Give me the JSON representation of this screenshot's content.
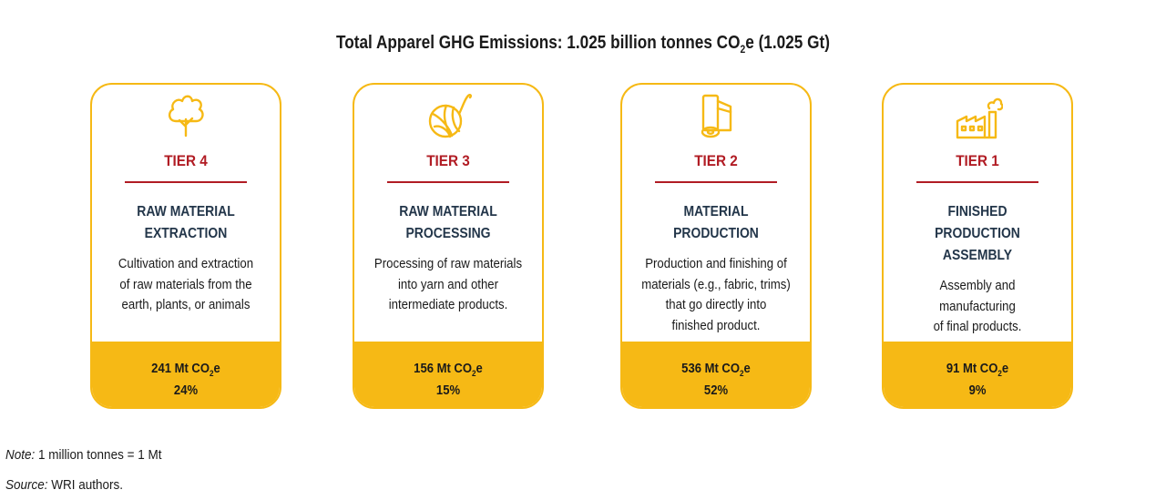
{
  "title": {
    "prefix": "Total Apparel GHG Emissions: 1.025 billion tonnes CO",
    "sub": "2",
    "suffix": "e (1.025 Gt)"
  },
  "cards": [
    {
      "icon": "cotton-plant-icon",
      "tier": "TIER 4",
      "heading": "RAW MATERIAL\nEXTRACTION",
      "description": "Cultivation and extraction\nof raw materials from the\nearth, plants, or animals",
      "emission_value": "241 Mt CO",
      "emission_sub": "2",
      "emission_suffix": "e",
      "percent": "24%"
    },
    {
      "icon": "yarn-ball-icon",
      "tier": "TIER 3",
      "heading": "RAW MATERIAL\nPROCESSING",
      "description": "Processing of raw materials\ninto yarn and other\nintermediate products.",
      "emission_value": "156 Mt CO",
      "emission_sub": "2",
      "emission_suffix": "e",
      "percent": "15%"
    },
    {
      "icon": "fabric-roll-icon",
      "tier": "TIER 2",
      "heading": "MATERIAL\nPRODUCTION",
      "description": "Production and finishing of\nmaterials (e.g., fabric, trims)\nthat go directly into\nfinished product.",
      "emission_value": "536 Mt CO",
      "emission_sub": "2",
      "emission_suffix": "e",
      "percent": "52%"
    },
    {
      "icon": "factory-icon",
      "tier": "TIER 1",
      "heading": "FINISHED\nPRODUCTION\nASSEMBLY",
      "description": "Assembly and manufacturing\nof final products.",
      "emission_value": "91 Mt CO",
      "emission_sub": "2",
      "emission_suffix": "e",
      "percent": "9%"
    }
  ],
  "note": {
    "label": "Note:",
    "text": " 1 million tonnes = 1 Mt"
  },
  "source": {
    "label": "Source:",
    "text": " WRI authors."
  },
  "colors": {
    "accent": "#f6b915",
    "tier_red": "#b11c24",
    "heading": "#23364a"
  }
}
